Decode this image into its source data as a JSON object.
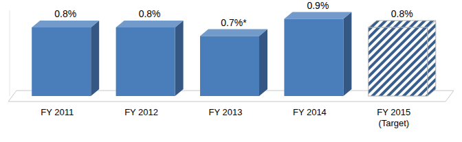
{
  "chart_data": {
    "type": "bar",
    "categories": [
      "FY 2011",
      "FY 2012",
      "FY 2013",
      "FY 2014",
      "FY 2015\n(Target)"
    ],
    "values": [
      0.8,
      0.8,
      0.7,
      0.9,
      0.8
    ],
    "value_labels": [
      "0.8%",
      "0.8%",
      "0.7%*",
      "0.9%",
      "0.8%"
    ],
    "color": "#4a7ebb",
    "ylim": [
      0,
      1
    ],
    "yticks": [],
    "tick_labels": "x",
    "grid": false,
    "data_labels": true
  }
}
